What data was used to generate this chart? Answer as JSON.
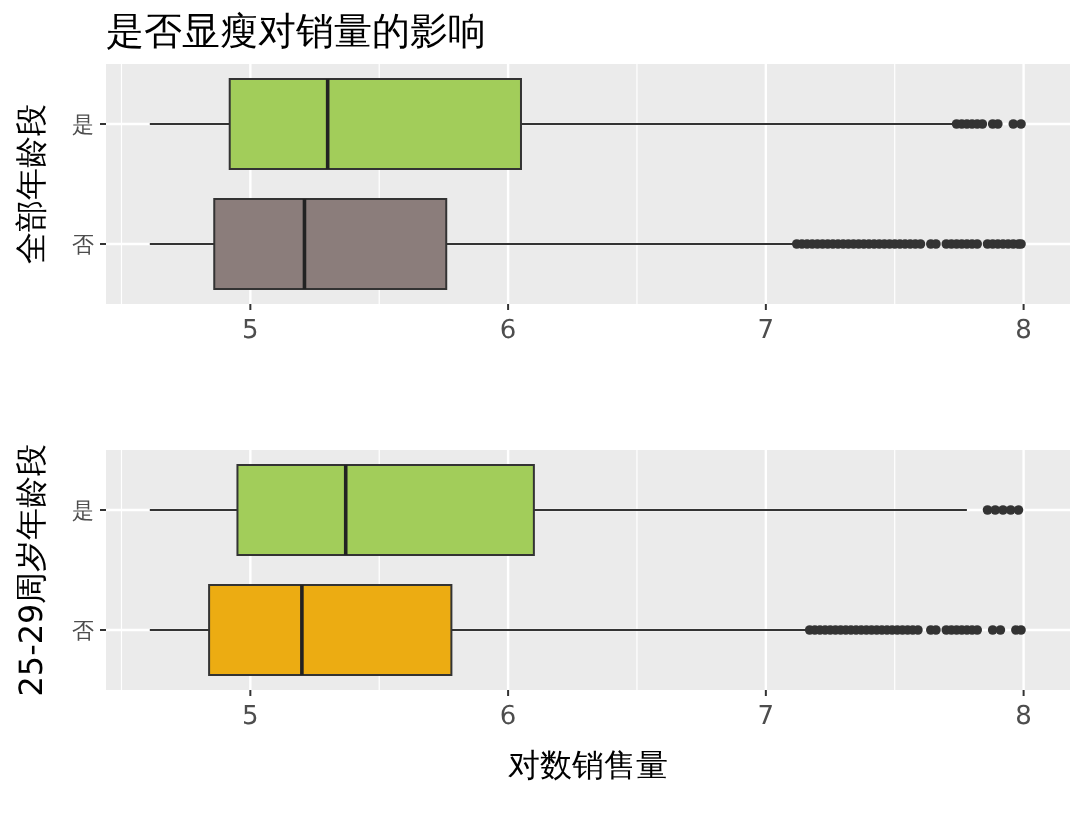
{
  "chart_data": [
    {
      "type": "box",
      "orientation": "horizontal",
      "title": "是否显瘦对销量的影响",
      "ylabel": "全部年龄段",
      "categories": [
        "是",
        "否"
      ],
      "colors": [
        "#a2cd5a",
        "#8b7d7b"
      ],
      "xlim": [
        4.44,
        8.18
      ],
      "xticks": [
        5,
        6,
        7,
        8
      ],
      "grid": true,
      "boxes": [
        {
          "low": 4.61,
          "q1": 4.92,
          "median": 5.3,
          "q3": 6.05,
          "high": 7.73,
          "outliers": [
            7.74,
            7.76,
            7.78,
            7.8,
            7.82,
            7.84,
            7.88,
            7.9,
            7.96,
            7.99
          ]
        },
        {
          "low": 4.61,
          "q1": 4.86,
          "median": 5.21,
          "q3": 5.76,
          "high": 7.11,
          "outliers": [
            7.12,
            7.14,
            7.16,
            7.18,
            7.2,
            7.22,
            7.24,
            7.26,
            7.28,
            7.3,
            7.32,
            7.34,
            7.36,
            7.38,
            7.4,
            7.42,
            7.44,
            7.46,
            7.48,
            7.5,
            7.52,
            7.54,
            7.56,
            7.58,
            7.6,
            7.64,
            7.66,
            7.7,
            7.72,
            7.74,
            7.76,
            7.78,
            7.8,
            7.82,
            7.86,
            7.88,
            7.9,
            7.92,
            7.94,
            7.96,
            7.98,
            7.99
          ]
        }
      ]
    },
    {
      "type": "box",
      "orientation": "horizontal",
      "xlabel": "对数销售量",
      "ylabel": "25-29周岁年龄段",
      "categories": [
        "是",
        "否"
      ],
      "colors": [
        "#a2cd5a",
        "#ecac12"
      ],
      "xlim": [
        4.44,
        8.18
      ],
      "xticks": [
        5,
        6,
        7,
        8
      ],
      "grid": true,
      "boxes": [
        {
          "low": 4.61,
          "q1": 4.95,
          "median": 5.37,
          "q3": 6.1,
          "high": 7.78,
          "outliers": [
            7.86,
            7.89,
            7.92,
            7.95,
            7.98
          ]
        },
        {
          "low": 4.61,
          "q1": 4.84,
          "median": 5.2,
          "q3": 5.78,
          "high": 7.16,
          "outliers": [
            7.17,
            7.19,
            7.21,
            7.23,
            7.25,
            7.27,
            7.29,
            7.31,
            7.33,
            7.35,
            7.37,
            7.39,
            7.41,
            7.43,
            7.45,
            7.47,
            7.49,
            7.51,
            7.53,
            7.55,
            7.57,
            7.59,
            7.64,
            7.66,
            7.7,
            7.72,
            7.74,
            7.76,
            7.78,
            7.8,
            7.82,
            7.88,
            7.91,
            7.97,
            7.99
          ]
        }
      ]
    }
  ]
}
